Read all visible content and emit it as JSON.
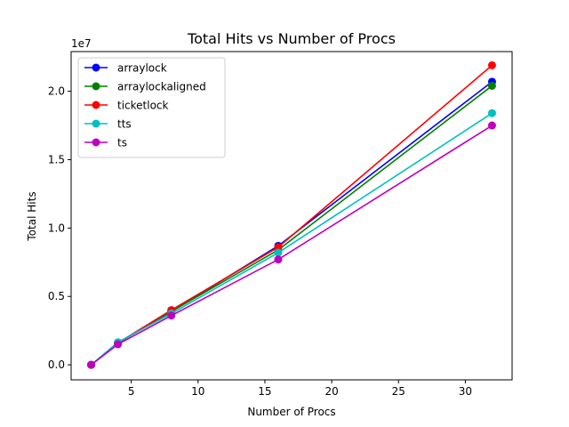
{
  "chart_data": {
    "type": "line",
    "title": "Total Hits vs Number of Procs",
    "xlabel": "Number of Procs",
    "ylabel": "Total Hits",
    "y_scale_label": "1e7",
    "xlim": [
      0.5,
      33.5
    ],
    "ylim": [
      -1.1,
      22.9
    ],
    "x_ticks": [
      5,
      10,
      15,
      20,
      25,
      30
    ],
    "x_tick_labels": [
      "5",
      "10",
      "15",
      "20",
      "25",
      "30"
    ],
    "y_ticks": [
      0.0,
      5.0,
      10.0,
      15.0,
      20.0
    ],
    "y_tick_labels": [
      "0.0",
      "0.5",
      "1.0",
      "1.5",
      "2.0"
    ],
    "grid": false,
    "legend_position": "top-left",
    "x": [
      2,
      4,
      8,
      16,
      32
    ],
    "series": [
      {
        "name": "arraylock",
        "color": "#0000ff",
        "values": [
          0.0,
          1.6,
          3.9,
          8.7,
          20.7
        ]
      },
      {
        "name": "arraylockaligned",
        "color": "#008000",
        "values": [
          0.0,
          1.6,
          3.9,
          8.4,
          20.4
        ]
      },
      {
        "name": "ticketlock",
        "color": "#ff0000",
        "values": [
          0.0,
          1.6,
          4.0,
          8.6,
          21.9
        ]
      },
      {
        "name": "tts",
        "color": "#00bfbf",
        "values": [
          0.0,
          1.65,
          3.75,
          8.2,
          18.4
        ]
      },
      {
        "name": "ts",
        "color": "#bf00bf",
        "values": [
          0.0,
          1.5,
          3.6,
          7.7,
          17.5
        ]
      }
    ]
  }
}
